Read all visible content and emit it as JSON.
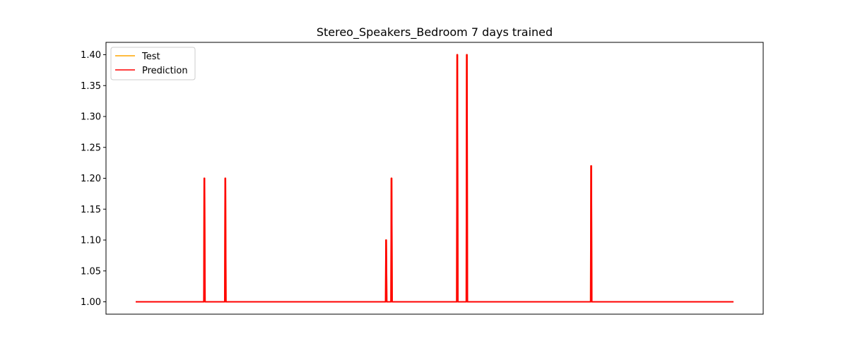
{
  "chart_data": {
    "type": "line",
    "title": "Stereo_Speakers_Bedroom 7 days trained",
    "xlabel": "",
    "ylabel": "",
    "x_range": [
      0,
      1000
    ],
    "ylim": [
      0.98,
      1.42
    ],
    "yticks": [
      "1.00",
      "1.05",
      "1.10",
      "1.15",
      "1.20",
      "1.25",
      "1.30",
      "1.35",
      "1.40"
    ],
    "xticks_visible": false,
    "grid": false,
    "legend_position": "top-left",
    "series": [
      {
        "name": "Test",
        "color": "#ffa500",
        "x": [
          0,
          114,
          114.6,
          115.2,
          116,
          149,
          149.6,
          150.2,
          151,
          418,
          418.6,
          419.2,
          420,
          427,
          427.6,
          428.2,
          429,
          537,
          537.6,
          538.2,
          539,
          553,
          553.6,
          554.2,
          555,
          761,
          761.6,
          762.2,
          763,
          1000
        ],
        "y": [
          1.0,
          1.0,
          1.2,
          1.2,
          1.0,
          1.0,
          1.2,
          1.2,
          1.0,
          1.0,
          1.1,
          1.1,
          1.0,
          1.0,
          1.2,
          1.2,
          1.0,
          1.0,
          1.4,
          1.4,
          1.0,
          1.0,
          1.4,
          1.4,
          1.0,
          1.0,
          1.22,
          1.22,
          1.0,
          1.0
        ]
      },
      {
        "name": "Prediction",
        "color": "#ff0000",
        "x": [
          0,
          114,
          114.6,
          115.2,
          116,
          149,
          149.6,
          150.2,
          151,
          418,
          418.6,
          419.2,
          420,
          427,
          427.6,
          428.2,
          429,
          537,
          537.6,
          538.2,
          539,
          553,
          553.6,
          554.2,
          555,
          761,
          761.6,
          762.2,
          763,
          1000
        ],
        "y": [
          1.0,
          1.0,
          1.2,
          1.2,
          1.0,
          1.0,
          1.2,
          1.2,
          1.0,
          1.0,
          1.1,
          1.1,
          1.0,
          1.0,
          1.2,
          1.2,
          1.0,
          1.0,
          1.4,
          1.4,
          1.0,
          1.0,
          1.4,
          1.4,
          1.0,
          1.0,
          1.22,
          1.22,
          1.0,
          1.0
        ]
      }
    ]
  }
}
